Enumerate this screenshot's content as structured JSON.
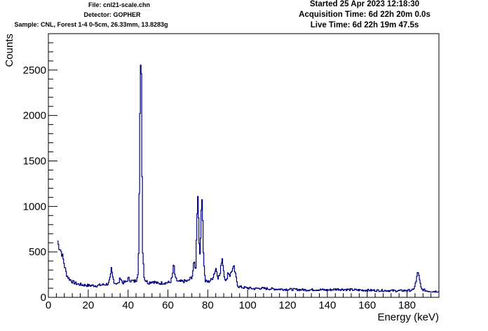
{
  "header": {
    "file": "File: cnl21-scale.chn",
    "detector": "Detector: GOPHER",
    "sample": "Sample: CNL, Forest 1-4 0-5cm, 26.33mm, 13.8283g",
    "started": "Started 25 Apr 2023 12:18:30",
    "acquisition": "Acquisition Time: 6d 22h 20m 0.0s",
    "live": "Live Time: 6d 22h 19m 47.5s"
  },
  "chart_data": {
    "type": "line",
    "title": "",
    "xlabel": "Energy (keV)",
    "ylabel": "Counts",
    "xlim": [
      0,
      196
    ],
    "ylim": [
      0,
      2900
    ],
    "xticks": [
      0,
      20,
      40,
      60,
      80,
      100,
      120,
      140,
      160,
      180
    ],
    "yticks": [
      0,
      500,
      1000,
      1500,
      2000,
      2500
    ],
    "grid": false,
    "line_color": "#000080",
    "series": [
      {
        "values": [
          [
            4.5,
            620
          ],
          [
            5.0,
            560
          ],
          [
            6.0,
            520
          ],
          [
            7.0,
            450
          ],
          [
            8.0,
            340
          ],
          [
            9.0,
            250
          ],
          [
            10.0,
            210
          ],
          [
            12.0,
            170
          ],
          [
            14.0,
            150
          ],
          [
            16.0,
            140
          ],
          [
            18.0,
            135
          ],
          [
            20.0,
            130
          ],
          [
            22.0,
            130
          ],
          [
            24.0,
            128
          ],
          [
            26.0,
            135
          ],
          [
            28.0,
            140
          ],
          [
            30.0,
            150
          ],
          [
            31.0,
            220
          ],
          [
            31.5,
            320
          ],
          [
            32.0,
            230
          ],
          [
            33.0,
            160
          ],
          [
            35.0,
            150
          ],
          [
            36.0,
            220
          ],
          [
            37.0,
            160
          ],
          [
            39.0,
            170
          ],
          [
            40.0,
            210
          ],
          [
            41.0,
            185
          ],
          [
            43.0,
            175
          ],
          [
            44.0,
            190
          ],
          [
            45.0,
            300
          ],
          [
            45.5,
            1200
          ],
          [
            46.0,
            2500
          ],
          [
            46.4,
            2780
          ],
          [
            46.8,
            1500
          ],
          [
            47.2,
            500
          ],
          [
            48.0,
            200
          ],
          [
            50.0,
            160
          ],
          [
            52.0,
            175
          ],
          [
            53.0,
            170
          ],
          [
            55.0,
            150
          ],
          [
            57.0,
            160
          ],
          [
            59.0,
            160
          ],
          [
            61.0,
            165
          ],
          [
            62.0,
            220
          ],
          [
            62.8,
            370
          ],
          [
            63.5,
            210
          ],
          [
            65.0,
            170
          ],
          [
            67.0,
            175
          ],
          [
            70.0,
            180
          ],
          [
            72.0,
            230
          ],
          [
            73.0,
            390
          ],
          [
            73.8,
            310
          ],
          [
            74.4,
            900
          ],
          [
            74.9,
            1130
          ],
          [
            75.5,
            650
          ],
          [
            76.0,
            400
          ],
          [
            76.6,
            1000
          ],
          [
            77.1,
            1120
          ],
          [
            77.6,
            500
          ],
          [
            78.5,
            180
          ],
          [
            80.0,
            170
          ],
          [
            82.0,
            200
          ],
          [
            83.0,
            260
          ],
          [
            84.0,
            320
          ],
          [
            85.0,
            220
          ],
          [
            86.0,
            250
          ],
          [
            87.0,
            450
          ],
          [
            88.0,
            260
          ],
          [
            89.0,
            160
          ],
          [
            90.0,
            280
          ],
          [
            91.0,
            240
          ],
          [
            92.0,
            300
          ],
          [
            93.0,
            330
          ],
          [
            94.0,
            220
          ],
          [
            95.0,
            120
          ],
          [
            97.0,
            110
          ],
          [
            99.0,
            105
          ],
          [
            101.0,
            100
          ],
          [
            103.0,
            95
          ],
          [
            106.0,
            100
          ],
          [
            110.0,
            95
          ],
          [
            115.0,
            90
          ],
          [
            120.0,
            88
          ],
          [
            125.0,
            85
          ],
          [
            130.0,
            82
          ],
          [
            135.0,
            85
          ],
          [
            140.0,
            80
          ],
          [
            145.0,
            90
          ],
          [
            150.0,
            85
          ],
          [
            155.0,
            80
          ],
          [
            160.0,
            78
          ],
          [
            165.0,
            75
          ],
          [
            170.0,
            75
          ],
          [
            175.0,
            72
          ],
          [
            180.0,
            75
          ],
          [
            183.0,
            80
          ],
          [
            184.5,
            180
          ],
          [
            185.3,
            300
          ],
          [
            186.0,
            200
          ],
          [
            187.0,
            90
          ],
          [
            190.0,
            70
          ],
          [
            193.0,
            65
          ],
          [
            196.0,
            68
          ]
        ]
      }
    ]
  }
}
